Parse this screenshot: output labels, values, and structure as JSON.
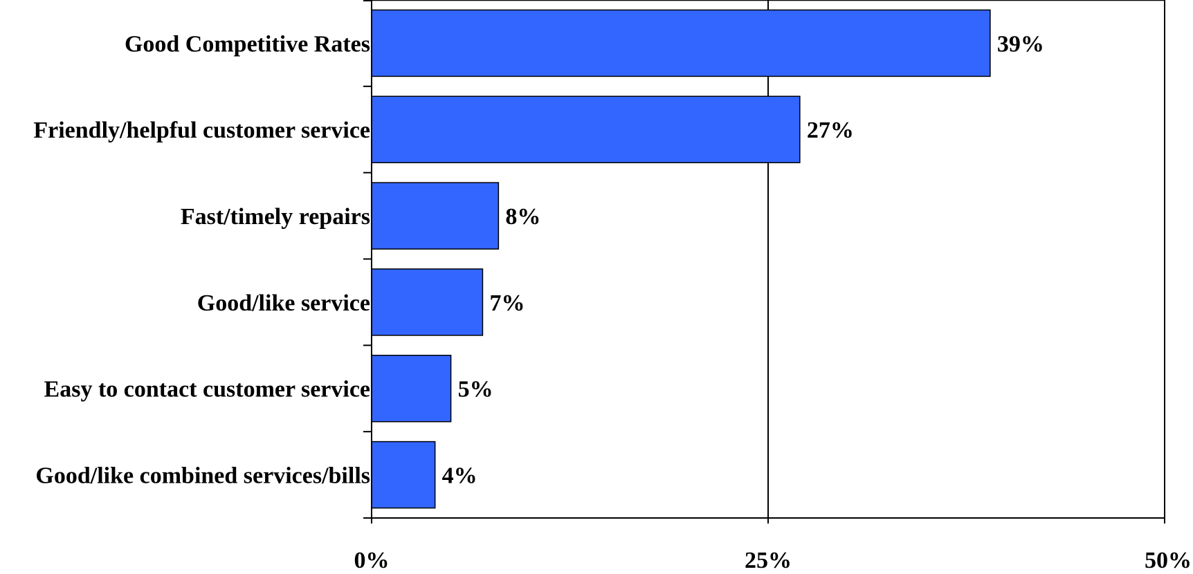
{
  "chart_data": {
    "type": "bar",
    "orientation": "horizontal",
    "categories": [
      "Good Competitive Rates",
      "Friendly/helpful customer service",
      "Fast/timely repairs",
      "Good/like service",
      "Easy to contact customer service",
      "Good/like combined services/bills"
    ],
    "values": [
      39,
      27,
      8,
      7,
      5,
      4
    ],
    "data_labels": [
      "39%",
      "27%",
      "8%",
      "7%",
      "5%",
      "4%"
    ],
    "xlim": [
      0,
      50
    ],
    "x_ticks": [
      0,
      25,
      50
    ],
    "x_tick_labels": [
      "0%",
      "25%",
      "50%"
    ],
    "grid": "vertical at 25%",
    "legend": "none",
    "title": "",
    "xlabel": "",
    "ylabel": "",
    "colors": {
      "bar_fill": "#3366FF",
      "bar_stroke": "#000000",
      "axis": "#000000",
      "text": "#000000",
      "background": "#FFFFFF"
    }
  }
}
